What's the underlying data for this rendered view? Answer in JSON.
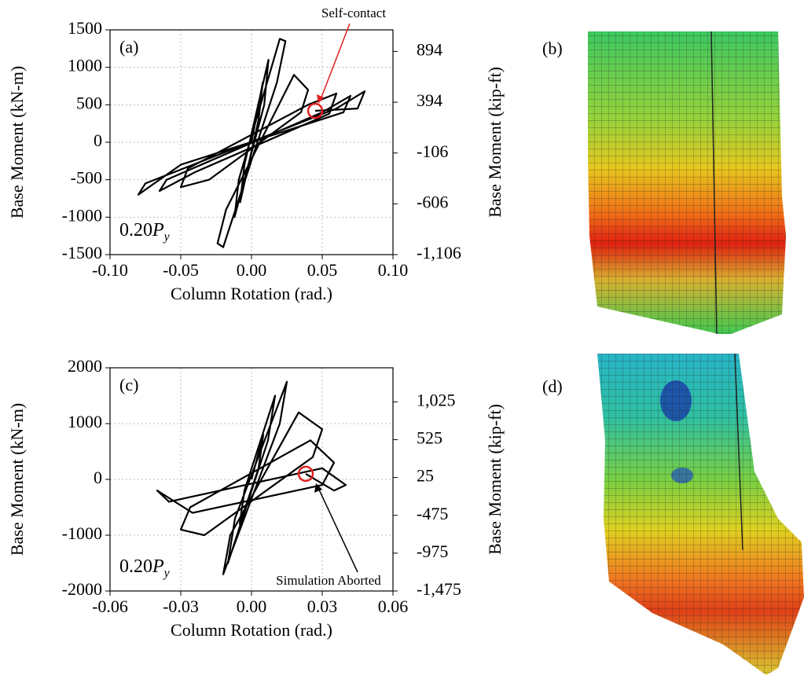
{
  "chart_data": [
    {
      "type": "line",
      "panel_label": "(a)",
      "x_label": "Column Rotation (rad.)",
      "y_label": "Base Moment (kN-m)",
      "y2_label": "Base Moment (kip-ft)",
      "load_label": [
        "0.20",
        "P",
        "y"
      ],
      "color": "#000000",
      "x": [
        0,
        0.008,
        0.005,
        -0.008,
        -0.005,
        0.012,
        0.009,
        -0.012,
        -0.009,
        0.02,
        0.024,
        0.018,
        -0.02,
        -0.024,
        -0.018,
        0.03,
        0.04,
        0.035,
        -0.03,
        -0.05,
        -0.045,
        0.04,
        0.06,
        0.055,
        -0.04,
        -0.065,
        -0.06,
        0.05,
        0.07,
        0.065,
        -0.05,
        -0.08,
        -0.075,
        0.06,
        0.08,
        0.075,
        0.045
      ],
      "values": [
        0,
        800,
        300,
        -800,
        -300,
        1100,
        500,
        -1000,
        -500,
        1380,
        1350,
        800,
        -1400,
        -1350,
        -900,
        900,
        700,
        400,
        -500,
        -600,
        -350,
        500,
        650,
        380,
        -400,
        -650,
        -500,
        400,
        620,
        400,
        -300,
        -700,
        -550,
        450,
        680,
        450,
        420
      ],
      "highlight": {
        "x": 0.045,
        "y": 420,
        "color": "#e02020",
        "label": "Self-contact"
      },
      "xlim": [
        -0.1,
        0.1
      ],
      "xticks": [
        {
          "value": -0.1,
          "label": "-0.10"
        },
        {
          "value": -0.05,
          "label": "-0.05"
        },
        {
          "value": 0,
          "label": "0.00"
        },
        {
          "value": 0.05,
          "label": "0.05"
        },
        {
          "value": 0.1,
          "label": "0.10"
        }
      ],
      "ylim": [
        -1500,
        1500
      ],
      "yticks": [
        -1500,
        -1000,
        -500,
        0,
        500,
        1000,
        1500
      ],
      "y2lim": [
        -1106,
        1106
      ],
      "y2ticks": [
        894,
        394,
        -106,
        -606,
        {
          "value": -1106,
          "label": "-1,106"
        }
      ],
      "grid": true
    },
    {
      "type": "line",
      "panel_label": "(c)",
      "x_label": "Column Rotation (rad.)",
      "y_label": "Base Moment (kN-m)",
      "y2_label": "Base Moment (kip-ft)",
      "load_label": [
        "0.20",
        "P",
        "y"
      ],
      "color": "#000000",
      "x": [
        0,
        0.005,
        0.003,
        -0.005,
        -0.003,
        0.01,
        0.007,
        -0.01,
        -0.007,
        0.015,
        0.012,
        -0.012,
        -0.009,
        0.02,
        0.03,
        0.026,
        -0.02,
        -0.03,
        -0.026,
        0.025,
        0.035,
        0.03,
        -0.025,
        -0.04,
        -0.035,
        0.03,
        0.04,
        0.035,
        0.023
      ],
      "values": [
        0,
        800,
        200,
        -800,
        -200,
        1500,
        700,
        -1500,
        -700,
        1750,
        1000,
        -1700,
        -1000,
        1200,
        900,
        400,
        -1000,
        -900,
        -500,
        700,
        300,
        -100,
        -600,
        -200,
        -400,
        200,
        -100,
        -200,
        100
      ],
      "highlight": {
        "x": 0.023,
        "y": 100,
        "color": "#e02020",
        "label": "Simulation Aborted"
      },
      "xlim": [
        -0.06,
        0.06
      ],
      "xticks": [
        {
          "value": -0.06,
          "label": "-0.06"
        },
        {
          "value": -0.03,
          "label": "-0.03"
        },
        {
          "value": 0,
          "label": "0.00"
        },
        {
          "value": 0.03,
          "label": "0.03"
        },
        {
          "value": 0.06,
          "label": "0.06"
        }
      ],
      "ylim": [
        -2000,
        2000
      ],
      "yticks": [
        -2000,
        -1000,
        0,
        1000,
        2000
      ],
      "y2lim": [
        -1475,
        1475
      ],
      "y2ticks": [
        {
          "value": 1025,
          "label": "1,025"
        },
        525,
        25,
        -475,
        -975,
        {
          "value": -1475,
          "label": "-1,475"
        }
      ],
      "grid": true
    }
  ],
  "images": [
    {
      "label": "(b)"
    },
    {
      "label": "(d)"
    }
  ]
}
